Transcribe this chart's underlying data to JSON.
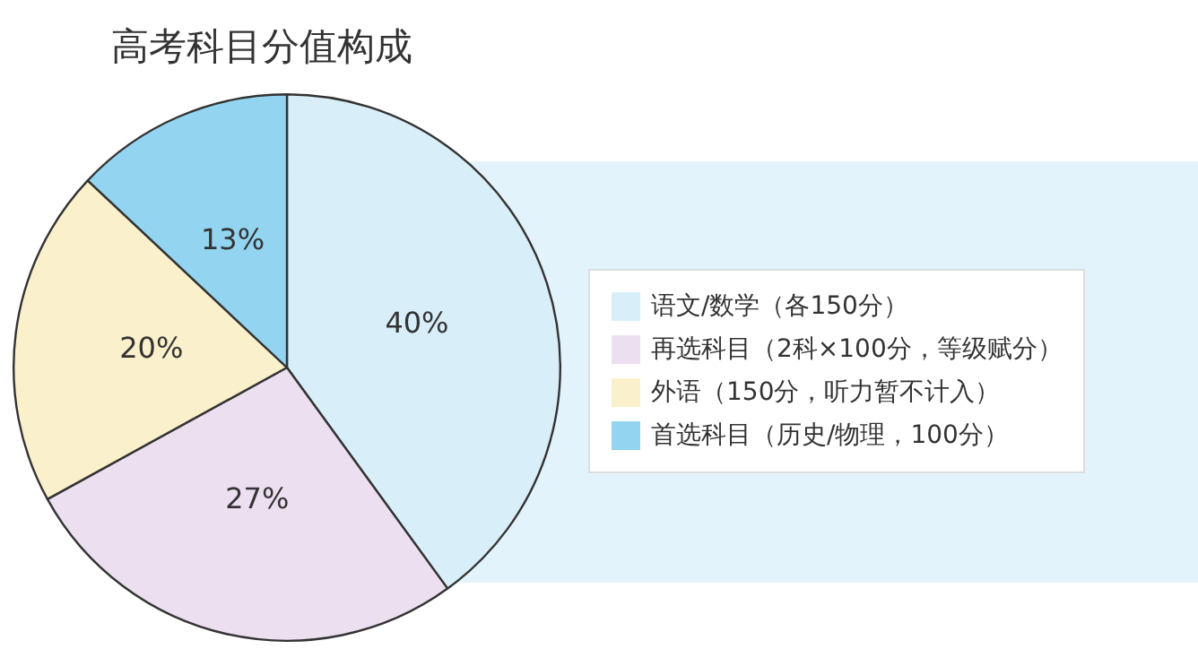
{
  "chart_data": {
    "type": "pie",
    "title": "高考科目分值构成",
    "categories": [
      "语文/数学（各150分）",
      "再选科目（2科×100分，等级赋分）",
      "外语（150分，听力暂不计入）",
      "首选科目（历史/物理，100分）"
    ],
    "values": [
      40,
      27,
      20,
      13
    ],
    "colors": [
      "#d8eff9",
      "#ecdff0",
      "#faf0cb",
      "#93d5f0"
    ],
    "value_labels": [
      "40%",
      "27%",
      "20%",
      "13%"
    ],
    "legend": "right"
  }
}
